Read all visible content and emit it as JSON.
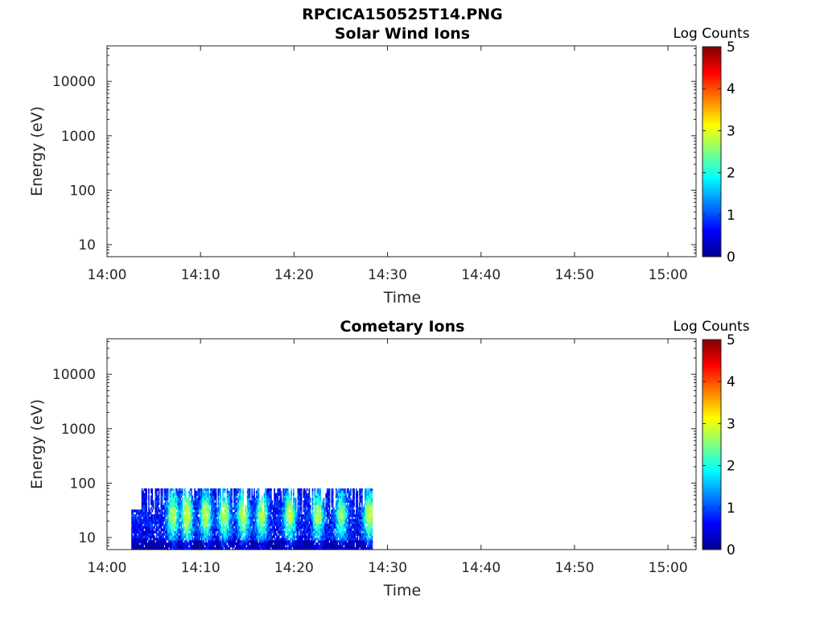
{
  "figure_title": "RPCICA150525T14.PNG",
  "colormap": [
    "#00008f",
    "#0000ff",
    "#0080ff",
    "#00ffff",
    "#80ff80",
    "#ffff00",
    "#ff8000",
    "#ff0000",
    "#800000"
  ],
  "chart_data": [
    {
      "type": "heatmap",
      "title": "Solar Wind Ions",
      "xlabel": "Time",
      "ylabel": "Energy (eV)",
      "yscale": "log",
      "ylim": [
        6,
        45000
      ],
      "xlim": [
        "14:00",
        "15:03"
      ],
      "x_ticks": [
        "14:00",
        "14:10",
        "14:20",
        "14:30",
        "14:40",
        "14:50",
        "15:00"
      ],
      "y_ticks": [
        "10",
        "100",
        "1000",
        "10000"
      ],
      "y_tick_values": [
        10,
        100,
        1000,
        10000
      ],
      "colorbar": {
        "label": "Log Counts",
        "range": [
          0,
          5
        ],
        "ticks": [
          "0",
          "1",
          "2",
          "3",
          "4",
          "5"
        ]
      },
      "data_extent": null
    },
    {
      "type": "heatmap",
      "title": "Cometary Ions",
      "xlabel": "Time",
      "ylabel": "Energy (eV)",
      "yscale": "log",
      "ylim": [
        6,
        45000
      ],
      "xlim": [
        "14:00",
        "15:03"
      ],
      "x_ticks": [
        "14:00",
        "14:10",
        "14:20",
        "14:30",
        "14:40",
        "14:50",
        "15:00"
      ],
      "y_ticks": [
        "10",
        "100",
        "1000",
        "10000"
      ],
      "y_tick_values": [
        10,
        100,
        1000,
        10000
      ],
      "colorbar": {
        "label": "Log Counts",
        "range": [
          0,
          5
        ],
        "ticks": [
          "0",
          "1",
          "2",
          "3",
          "4",
          "5"
        ]
      },
      "data_extent": {
        "time_start": "14:02.6",
        "time_end": "14:28.3",
        "energy_min": 6,
        "energy_max": 80,
        "log_counts_peak": 2.8
      },
      "bright_bands": [
        {
          "time": "14:07.0",
          "level": 2.4
        },
        {
          "time": "14:08.5",
          "level": 2.8
        },
        {
          "time": "14:10.5",
          "level": 2.5
        },
        {
          "time": "14:12.5",
          "level": 2.4
        },
        {
          "time": "14:14.5",
          "level": 2.6
        },
        {
          "time": "14:16.5",
          "level": 2.5
        },
        {
          "time": "14:19.5",
          "level": 2.6
        },
        {
          "time": "14:22.5",
          "level": 2.4
        },
        {
          "time": "14:25.0",
          "level": 2.2
        },
        {
          "time": "14:28.0",
          "level": 2.7
        }
      ]
    }
  ]
}
